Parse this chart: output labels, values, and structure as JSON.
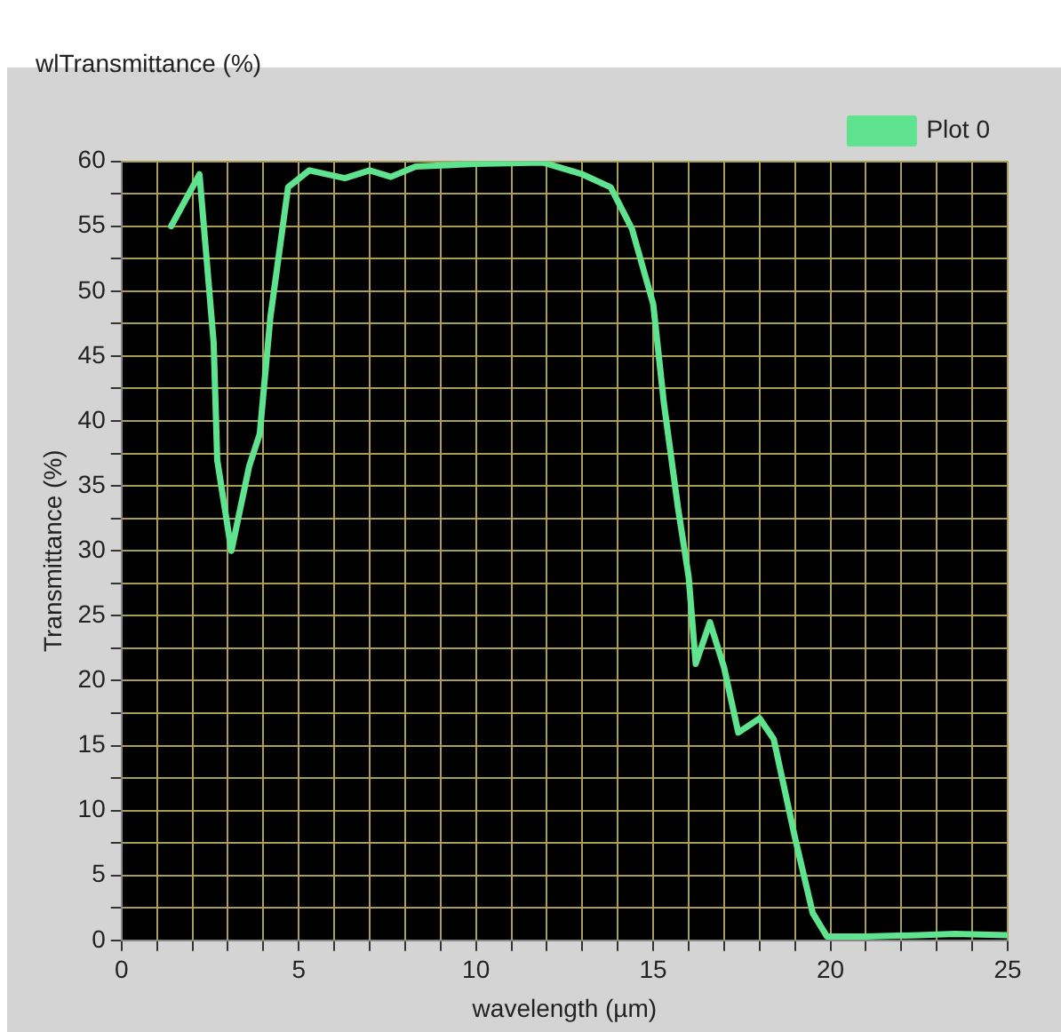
{
  "chart_data": {
    "type": "line",
    "title": "wlTransmittance (%)",
    "xlabel": "wavelength (µm)",
    "ylabel": "Transmittance (%)",
    "x": [
      1.4,
      2.2,
      2.6,
      2.7,
      3.1,
      3.6,
      3.9,
      4.2,
      4.7,
      5.3,
      6.3,
      7,
      7.6,
      8.3,
      10,
      11.9,
      13,
      13.8,
      14.4,
      15,
      15.3,
      15.7,
      16,
      16.2,
      16.6,
      17,
      17.4,
      18,
      18.4,
      19,
      19.5,
      19.9,
      21,
      22.5,
      23.5,
      25
    ],
    "series": [
      {
        "name": "Plot 0",
        "color": "#5fe38e",
        "values": [
          55,
          59,
          46,
          37,
          30,
          36.5,
          39,
          48,
          58,
          59.3,
          58.7,
          59.3,
          58.8,
          59.6,
          59.8,
          59.9,
          59,
          58,
          54.8,
          49,
          41.4,
          33.3,
          28,
          21.3,
          24.5,
          21,
          16,
          17.1,
          15.5,
          7.9,
          2.1,
          0.3,
          0.3,
          0.4,
          0.5,
          0.4
        ]
      }
    ],
    "xlim": [
      0,
      25
    ],
    "ylim": [
      0,
      60
    ],
    "xticks": [
      0,
      {
        "value": 1,
        "label": null
      },
      {
        "value": 2,
        "label": null
      },
      {
        "value": 3,
        "label": null
      },
      {
        "value": 4,
        "label": null
      },
      5,
      {
        "value": 6,
        "label": null
      },
      {
        "value": 7,
        "label": null
      },
      {
        "value": 8,
        "label": null
      },
      {
        "value": 9,
        "label": null
      },
      10,
      {
        "value": 11,
        "label": null
      },
      {
        "value": 12,
        "label": null
      },
      {
        "value": 13,
        "label": null
      },
      {
        "value": 14,
        "label": null
      },
      15,
      {
        "value": 16,
        "label": null
      },
      {
        "value": 17,
        "label": null
      },
      {
        "value": 18,
        "label": null
      },
      {
        "value": 19,
        "label": null
      },
      20,
      {
        "value": 21,
        "label": null
      },
      {
        "value": 22,
        "label": null
      },
      {
        "value": 23,
        "label": null
      },
      {
        "value": 24,
        "label": null
      },
      25
    ],
    "yticks": [
      0,
      {
        "value": 2.5,
        "label": null
      },
      5,
      {
        "value": 7.5,
        "label": null
      },
      10,
      {
        "value": 12.5,
        "label": null
      },
      15,
      {
        "value": 17.5,
        "label": null
      },
      20,
      {
        "value": 22.5,
        "label": null
      },
      25,
      {
        "value": 27.5,
        "label": null
      },
      30,
      {
        "value": 32.5,
        "label": null
      },
      35,
      {
        "value": 37.5,
        "label": null
      },
      40,
      {
        "value": 42.5,
        "label": null
      },
      45,
      {
        "value": 47.5,
        "label": null
      },
      50,
      {
        "value": 52.5,
        "label": null
      },
      55,
      {
        "value": 57.5,
        "label": null
      },
      60
    ],
    "grid": true,
    "legend": "top right",
    "marker": "none",
    "line_style": "solid"
  }
}
